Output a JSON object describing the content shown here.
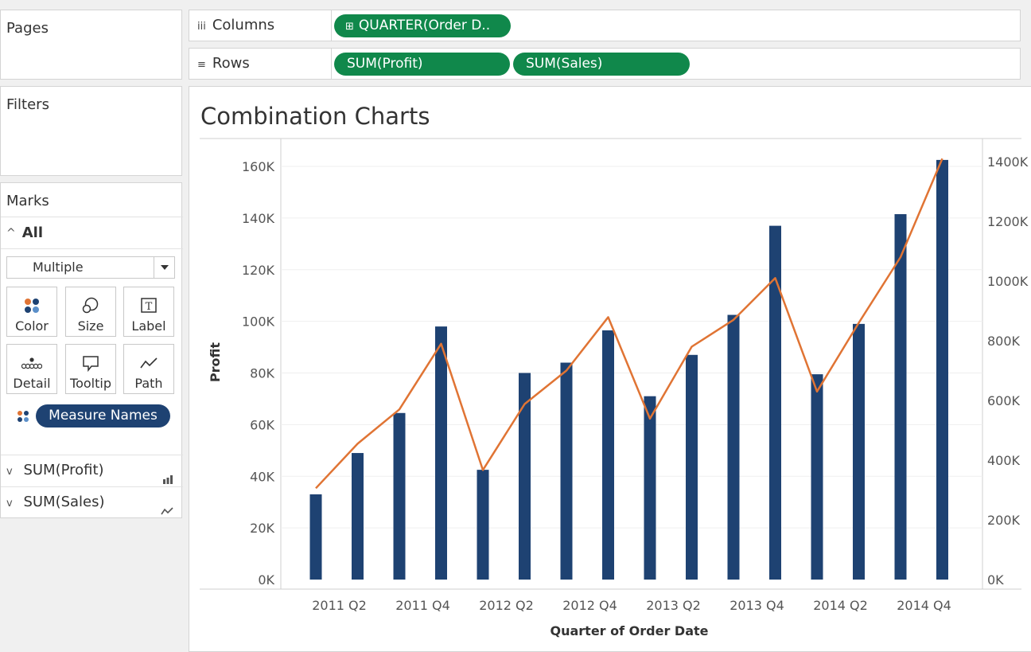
{
  "pages": {
    "title": "Pages"
  },
  "filters": {
    "title": "Filters"
  },
  "marks": {
    "title": "Marks",
    "all_label": "All",
    "mark_type": "Multiple",
    "buttons": [
      {
        "label": "Color",
        "icon": "color-icon"
      },
      {
        "label": "Size",
        "icon": "size-icon"
      },
      {
        "label": "Label",
        "icon": "label-icon"
      },
      {
        "label": "Detail",
        "icon": "detail-icon"
      },
      {
        "label": "Tooltip",
        "icon": "tooltip-icon"
      },
      {
        "label": "Path",
        "icon": "path-icon"
      }
    ],
    "color_pill": "Measure Names",
    "measures": [
      {
        "label": "SUM(Profit)",
        "icon": "bar-chart-icon"
      },
      {
        "label": "SUM(Sales)",
        "icon": "line-chart-icon"
      }
    ]
  },
  "columns": {
    "label": "Columns",
    "pills": [
      "QUARTER(Order D.."
    ]
  },
  "rows": {
    "label": "Rows",
    "pills": [
      "SUM(Profit)",
      "SUM(Sales)"
    ]
  },
  "colors": {
    "pill_green": "#10884b",
    "pill_blue": "#1e4272",
    "bar": "#1e4272",
    "line": "#e07434"
  },
  "chart_data": {
    "type": "bar",
    "title": "Combination Charts",
    "xlabel": "Quarter of Order Date",
    "ylabel": "Profit",
    "x": [
      "2011 Q1",
      "2011 Q2",
      "2011 Q3",
      "2011 Q4",
      "2012 Q1",
      "2012 Q2",
      "2012 Q3",
      "2012 Q4",
      "2013 Q1",
      "2013 Q2",
      "2013 Q3",
      "2013 Q4",
      "2014 Q1",
      "2014 Q2",
      "2014 Q3",
      "2014 Q4"
    ],
    "x_tick_labels": [
      "2011 Q2",
      "2011 Q4",
      "2012 Q2",
      "2012 Q4",
      "2013 Q2",
      "2013 Q4",
      "2014 Q2",
      "2014 Q4"
    ],
    "series": [
      {
        "name": "SUM(Profit)",
        "type": "bar",
        "axis": "left",
        "values": [
          33000,
          49000,
          64500,
          98000,
          42500,
          80000,
          84000,
          96500,
          71000,
          87000,
          102500,
          137000,
          79500,
          99000,
          141500,
          162500
        ]
      },
      {
        "name": "SUM(Sales)",
        "type": "line",
        "axis": "right",
        "values": [
          306000,
          455000,
          570000,
          790000,
          367000,
          588000,
          700000,
          879000,
          539000,
          780000,
          870000,
          1010000,
          630000,
          860000,
          1080000,
          1410000
        ]
      }
    ],
    "left_axis": {
      "ylim": [
        0,
        170000
      ],
      "ticks": [
        0,
        20000,
        40000,
        60000,
        80000,
        100000,
        120000,
        140000,
        160000
      ],
      "tick_labels": [
        "0K",
        "20K",
        "40K",
        "60K",
        "80K",
        "100K",
        "120K",
        "140K",
        "160K"
      ]
    },
    "right_axis": {
      "ylim": [
        0,
        1480000
      ],
      "ticks": [
        0,
        200000,
        400000,
        600000,
        800000,
        1000000,
        1200000,
        1400000
      ],
      "tick_labels": [
        "0K",
        "200K",
        "400K",
        "600K",
        "800K",
        "1000K",
        "1200K",
        "1400K"
      ]
    },
    "grid": true
  }
}
